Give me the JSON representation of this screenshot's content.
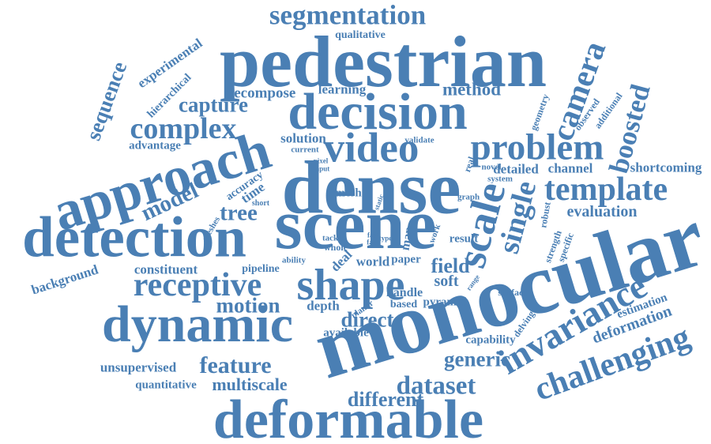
{
  "theme": {
    "word_color": "#4a7fb4"
  },
  "words": {
    "segmentation": "segmentation",
    "pedestrian": "pedestrian",
    "qualitative": "qualitative",
    "experimental": "experimental",
    "sequence": "sequence",
    "hierarchical": "hierarchical",
    "decompose": "decompose",
    "learning": "learning",
    "method": "method",
    "decision": "decision",
    "camera": "camera",
    "capture": "capture",
    "boosted": "boosted",
    "complex": "complex",
    "geometry": "geometry",
    "observed": "observed",
    "additional": "additional",
    "video": "video",
    "solution": "solution",
    "validate": "validate",
    "advantage": "advantage",
    "current": "current",
    "problem": "problem",
    "approach": "approach",
    "pixel": "pixel",
    "input": "input",
    "real": "real",
    "novel": "novel",
    "detailed": "detailed",
    "channel": "channel",
    "shortcoming": "shortcoming",
    "dense": "dense",
    "system": "system",
    "template": "template",
    "accuracy": "accuracy",
    "time": "time",
    "mesh": "mesh",
    "graph": "graph",
    "model": "model",
    "short": "short",
    "static": "static",
    "single": "single",
    "tree": "tree",
    "scale": "scale",
    "robust": "robust",
    "evaluation": "evaluation",
    "meshes": "meshes",
    "detection": "detection",
    "scene": "scene",
    "tackle": "tackle",
    "fast": "fast",
    "face": "face",
    "type": "type",
    "whole": "whole",
    "map": "map",
    "work": "work",
    "result": "result",
    "strength": "strength",
    "specific": "specific",
    "monocular": "monocular",
    "ability": "ability",
    "deal": "deal",
    "world": "world",
    "paper": "paper",
    "field": "field",
    "constituent": "constituent",
    "pipeline": "pipeline",
    "receptive": "receptive",
    "shape": "shape",
    "soft": "soft",
    "range": "range",
    "surface": "surface",
    "background": "background",
    "handle": "handle",
    "motion": "motion",
    "depth": "depth",
    "planar": "planar",
    "based": "based",
    "pyramid": "pyramid",
    "invariance": "invariance",
    "dynamic": "dynamic",
    "direct": "direct",
    "delving": "delving",
    "estimation": "estimation",
    "available": "available",
    "deformation": "deformation",
    "capability": "capability",
    "generic": "generic",
    "challenging": "challenging",
    "unsupervised": "unsupervised",
    "feature": "feature",
    "dataset": "dataset",
    "quantitative": "quantitative",
    "multiscale": "multiscale",
    "different": "different",
    "deformable": "deformable"
  }
}
